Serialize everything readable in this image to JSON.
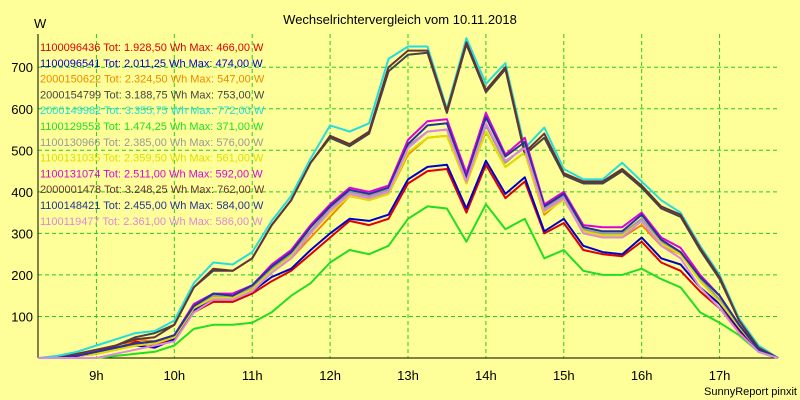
{
  "chart_data": {
    "type": "line",
    "title": "Wechselrichtervergleich vom 10.11.2018",
    "ylabel": "W",
    "footer": "SunnyReport pinxit",
    "xlim": [
      8.25,
      17.75
    ],
    "ylim": [
      0,
      780
    ],
    "grid": true,
    "legend_position": "top-left",
    "x_ticks": [
      {
        "value": 9,
        "label": "9h"
      },
      {
        "value": 10,
        "label": "10h"
      },
      {
        "value": 11,
        "label": "11h"
      },
      {
        "value": 12,
        "label": "12h"
      },
      {
        "value": 13,
        "label": "13h"
      },
      {
        "value": 14,
        "label": "14h"
      },
      {
        "value": 15,
        "label": "15h"
      },
      {
        "value": 16,
        "label": "16h"
      },
      {
        "value": 17,
        "label": "17h"
      }
    ],
    "y_ticks": [
      {
        "value": 100,
        "label": "100"
      },
      {
        "value": 200,
        "label": "200"
      },
      {
        "value": 300,
        "label": "300"
      },
      {
        "value": 400,
        "label": "400"
      },
      {
        "value": 500,
        "label": "500"
      },
      {
        "value": 600,
        "label": "600"
      },
      {
        "value": 700,
        "label": "700"
      }
    ],
    "x": [
      8.25,
      8.5,
      8.75,
      9.0,
      9.25,
      9.5,
      9.75,
      10.0,
      10.25,
      10.5,
      10.75,
      11.0,
      11.25,
      11.5,
      11.75,
      12.0,
      12.25,
      12.5,
      12.75,
      13.0,
      13.25,
      13.5,
      13.75,
      14.0,
      14.25,
      14.5,
      14.75,
      15.0,
      15.25,
      15.5,
      15.75,
      16.0,
      16.25,
      16.5,
      16.75,
      17.0,
      17.25,
      17.5,
      17.75
    ],
    "series": [
      {
        "name": "1100096436 Tot: 1.928,50 Wh Max: 466,00 W",
        "color": "#dd0000",
        "values": [
          0,
          0,
          5,
          10,
          20,
          40,
          30,
          45,
          110,
          135,
          135,
          155,
          185,
          210,
          250,
          290,
          330,
          320,
          335,
          420,
          450,
          455,
          350,
          465,
          385,
          425,
          300,
          325,
          260,
          250,
          245,
          280,
          230,
          210,
          160,
          120,
          65,
          15,
          0
        ]
      },
      {
        "name": "1100096541 Tot: 2.011,25 Wh Max: 474,00 W",
        "color": "#0000cc",
        "values": [
          0,
          0,
          5,
          10,
          25,
          30,
          25,
          45,
          115,
          140,
          140,
          160,
          195,
          215,
          260,
          300,
          335,
          330,
          345,
          430,
          460,
          465,
          360,
          475,
          395,
          435,
          305,
          335,
          270,
          255,
          250,
          290,
          240,
          225,
          170,
          130,
          70,
          20,
          0
        ]
      },
      {
        "name": "2000150622 Tot: 2.324,50 Wh Max: 547,00 W",
        "color": "#ee8800",
        "values": [
          0,
          0,
          5,
          15,
          20,
          45,
          40,
          50,
          120,
          150,
          145,
          170,
          210,
          240,
          290,
          340,
          390,
          380,
          395,
          490,
          530,
          535,
          420,
          545,
          460,
          495,
          345,
          385,
          310,
          295,
          290,
          320,
          270,
          250,
          190,
          140,
          75,
          20,
          0
        ]
      },
      {
        "name": "2000154799 Tot: 3.188,75 Wh Max: 753,00 W",
        "color": "#444444",
        "values": [
          0,
          0,
          5,
          15,
          30,
          50,
          60,
          80,
          170,
          210,
          210,
          240,
          320,
          380,
          470,
          530,
          510,
          540,
          690,
          730,
          735,
          590,
          755,
          640,
          695,
          490,
          530,
          440,
          420,
          420,
          450,
          410,
          360,
          340,
          260,
          190,
          90,
          25,
          0
        ]
      },
      {
        "name": "2000149982 Tot: 3.355,75 Wh Max: 772,00 W",
        "color": "#22dddd",
        "values": [
          0,
          5,
          15,
          30,
          45,
          60,
          65,
          90,
          180,
          230,
          225,
          255,
          330,
          390,
          480,
          560,
          545,
          565,
          720,
          750,
          750,
          600,
          770,
          660,
          710,
          505,
          555,
          455,
          430,
          430,
          470,
          425,
          380,
          350,
          270,
          200,
          95,
          30,
          0
        ]
      },
      {
        "name": "1100129553 Tot: 1.474,25 Wh Max: 371,00 W",
        "color": "#22dd22",
        "values": [
          0,
          0,
          0,
          0,
          5,
          10,
          15,
          30,
          70,
          80,
          80,
          85,
          110,
          150,
          180,
          230,
          260,
          250,
          270,
          335,
          365,
          360,
          280,
          370,
          310,
          335,
          240,
          260,
          210,
          200,
          200,
          215,
          190,
          170,
          110,
          85,
          55,
          15,
          0
        ]
      },
      {
        "name": "1100130966 Tot: 2.385,00 Wh Max: 576,00 W",
        "color": "#999999",
        "values": [
          0,
          0,
          5,
          15,
          20,
          30,
          35,
          50,
          125,
          150,
          145,
          170,
          215,
          250,
          305,
          360,
          400,
          390,
          405,
          510,
          545,
          550,
          430,
          560,
          470,
          510,
          360,
          390,
          310,
          300,
          300,
          335,
          280,
          255,
          190,
          140,
          75,
          20,
          0
        ]
      },
      {
        "name": "1100131035 Tot: 2.359,50 Wh Max: 561,00 W",
        "color": "#dddd00",
        "values": [
          0,
          0,
          5,
          10,
          20,
          30,
          35,
          50,
          120,
          145,
          145,
          165,
          210,
          245,
          300,
          350,
          390,
          380,
          395,
          495,
          530,
          535,
          420,
          545,
          460,
          495,
          350,
          380,
          305,
          295,
          295,
          330,
          275,
          250,
          185,
          135,
          75,
          20,
          0
        ]
      },
      {
        "name": "1100131074 Tot: 2.511,00 Wh Max: 592,00 W",
        "color": "#dd00dd",
        "values": [
          0,
          0,
          5,
          15,
          25,
          35,
          40,
          55,
          130,
          155,
          155,
          175,
          225,
          260,
          320,
          370,
          410,
          400,
          415,
          525,
          570,
          575,
          445,
          590,
          490,
          530,
          370,
          400,
          320,
          315,
          315,
          350,
          290,
          265,
          200,
          150,
          80,
          20,
          0
        ]
      },
      {
        "name": "2000001478 Tot: 3.248,25 Wh Max: 762,00 W",
        "color": "#663333",
        "values": [
          0,
          0,
          10,
          20,
          30,
          45,
          50,
          80,
          170,
          215,
          210,
          240,
          320,
          380,
          470,
          535,
          515,
          545,
          700,
          740,
          740,
          595,
          760,
          645,
          700,
          495,
          540,
          445,
          425,
          425,
          455,
          415,
          365,
          345,
          265,
          195,
          90,
          25,
          0
        ]
      },
      {
        "name": "1100148421 Tot: 2.455,00 Wh Max: 584,00 W",
        "color": "#223399",
        "values": [
          0,
          0,
          5,
          15,
          25,
          35,
          40,
          55,
          125,
          155,
          150,
          175,
          220,
          255,
          315,
          365,
          405,
          395,
          410,
          515,
          560,
          565,
          435,
          580,
          485,
          520,
          365,
          395,
          315,
          305,
          305,
          345,
          285,
          255,
          195,
          150,
          80,
          20,
          0
        ]
      },
      {
        "name": "1100119477 Tot: 2.361,00 Wh Max: 586,00 W",
        "color": "#dd88dd",
        "values": [
          0,
          0,
          0,
          0,
          10,
          20,
          30,
          40,
          110,
          140,
          140,
          160,
          205,
          240,
          300,
          355,
          395,
          385,
          400,
          505,
          545,
          550,
          425,
          565,
          475,
          505,
          355,
          385,
          300,
          290,
          290,
          330,
          270,
          240,
          170,
          120,
          60,
          15,
          0
        ]
      }
    ]
  }
}
